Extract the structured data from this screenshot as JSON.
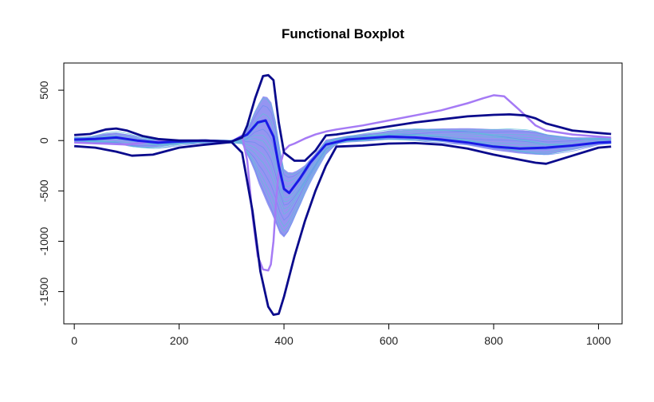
{
  "chart_data": {
    "type": "line",
    "title": "Functional Boxplot",
    "xlabel": "",
    "ylabel": "",
    "xlim": [
      -20,
      1045
    ],
    "ylim": [
      -1820,
      770
    ],
    "x_ticks": [
      0,
      200,
      400,
      600,
      800,
      1000
    ],
    "y_ticks": [
      500,
      0,
      -500,
      -1000,
      -1500
    ],
    "grid": false,
    "legend": "none",
    "colors": {
      "envelope": "#0a0a8c",
      "median": "#1a1ae6",
      "central_band": "#8a8af0",
      "sample_curves": "#5fc0d8",
      "outlier": "#a57af5",
      "axis": "#000000"
    },
    "series": [
      {
        "role": "upper-envelope",
        "x": [
          0,
          30,
          60,
          80,
          100,
          130,
          160,
          200,
          250,
          300,
          320,
          330,
          345,
          360,
          370,
          380,
          390,
          400,
          420,
          440,
          460,
          480,
          500,
          550,
          600,
          650,
          700,
          750,
          800,
          830,
          860,
          880,
          900,
          950,
          1000,
          1024
        ],
        "y": [
          55,
          65,
          110,
          120,
          100,
          45,
          15,
          0,
          0,
          -10,
          30,
          150,
          420,
          640,
          650,
          600,
          180,
          -120,
          -200,
          -200,
          -100,
          50,
          60,
          100,
          140,
          180,
          210,
          240,
          255,
          260,
          250,
          220,
          170,
          100,
          75,
          65
        ]
      },
      {
        "role": "lower-envelope",
        "x": [
          0,
          40,
          80,
          110,
          150,
          200,
          250,
          300,
          320,
          340,
          355,
          370,
          380,
          390,
          400,
          420,
          440,
          460,
          480,
          500,
          550,
          600,
          650,
          700,
          750,
          800,
          850,
          880,
          900,
          950,
          1000,
          1024
        ],
        "y": [
          -55,
          -70,
          -110,
          -150,
          -140,
          -70,
          -40,
          -15,
          -120,
          -700,
          -1300,
          -1650,
          -1730,
          -1720,
          -1550,
          -1150,
          -800,
          -500,
          -250,
          -60,
          -50,
          -30,
          -25,
          -40,
          -80,
          -140,
          -190,
          -220,
          -230,
          -150,
          -70,
          -60
        ]
      },
      {
        "role": "median",
        "x": [
          0,
          40,
          80,
          120,
          160,
          200,
          250,
          300,
          330,
          350,
          365,
          380,
          390,
          400,
          410,
          430,
          450,
          480,
          520,
          600,
          650,
          700,
          750,
          800,
          850,
          900,
          950,
          1000,
          1024
        ],
        "y": [
          10,
          15,
          30,
          0,
          -20,
          -10,
          0,
          -10,
          60,
          180,
          200,
          40,
          -250,
          -480,
          -520,
          -380,
          -220,
          -40,
          10,
          40,
          30,
          10,
          -20,
          -60,
          -80,
          -70,
          -50,
          -20,
          -15
        ]
      },
      {
        "role": "outlier",
        "x": [
          0,
          50,
          100,
          150,
          200,
          250,
          300,
          320,
          330,
          340,
          350,
          360,
          370,
          375,
          380,
          385,
          390,
          400,
          410,
          420,
          440,
          460,
          480,
          500,
          550,
          600,
          650,
          700,
          750,
          780,
          800,
          820,
          850,
          880,
          900,
          950,
          1000,
          1024
        ],
        "y": [
          -20,
          -30,
          -40,
          -10,
          0,
          -5,
          -10,
          50,
          -200,
          -750,
          -1150,
          -1280,
          -1290,
          -1230,
          -1000,
          -600,
          -300,
          -100,
          -50,
          -30,
          20,
          60,
          90,
          110,
          150,
          200,
          250,
          300,
          370,
          420,
          450,
          440,
          300,
          150,
          100,
          60,
          40,
          30
        ]
      }
    ]
  }
}
